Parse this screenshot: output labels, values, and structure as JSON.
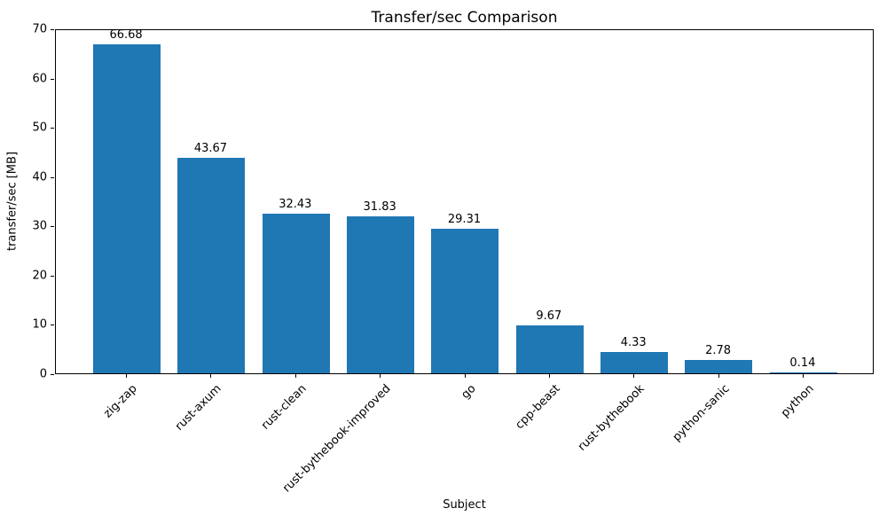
{
  "chart_data": {
    "type": "bar",
    "title": "Transfer/sec Comparison",
    "xlabel": "Subject",
    "ylabel": "transfer/sec [MB]",
    "categories": [
      "zig-zap",
      "rust-axum",
      "rust-clean",
      "rust-bythebook-improved",
      "go",
      "cpp-beast",
      "rust-bythebook",
      "python-sanic",
      "python"
    ],
    "values": [
      66.68,
      43.67,
      32.43,
      31.83,
      29.31,
      9.67,
      4.33,
      2.78,
      0.14
    ],
    "value_labels": [
      "66.68",
      "43.67",
      "32.43",
      "31.83",
      "29.31",
      "9.67",
      "4.33",
      "2.78",
      "0.14"
    ],
    "ylim": [
      0,
      70
    ],
    "yticks": [
      0,
      10,
      20,
      30,
      40,
      50,
      60,
      70
    ],
    "bar_color": "#1f77b4",
    "grid": false,
    "legend_position": "none",
    "x_tick_rotation_deg": 45
  }
}
